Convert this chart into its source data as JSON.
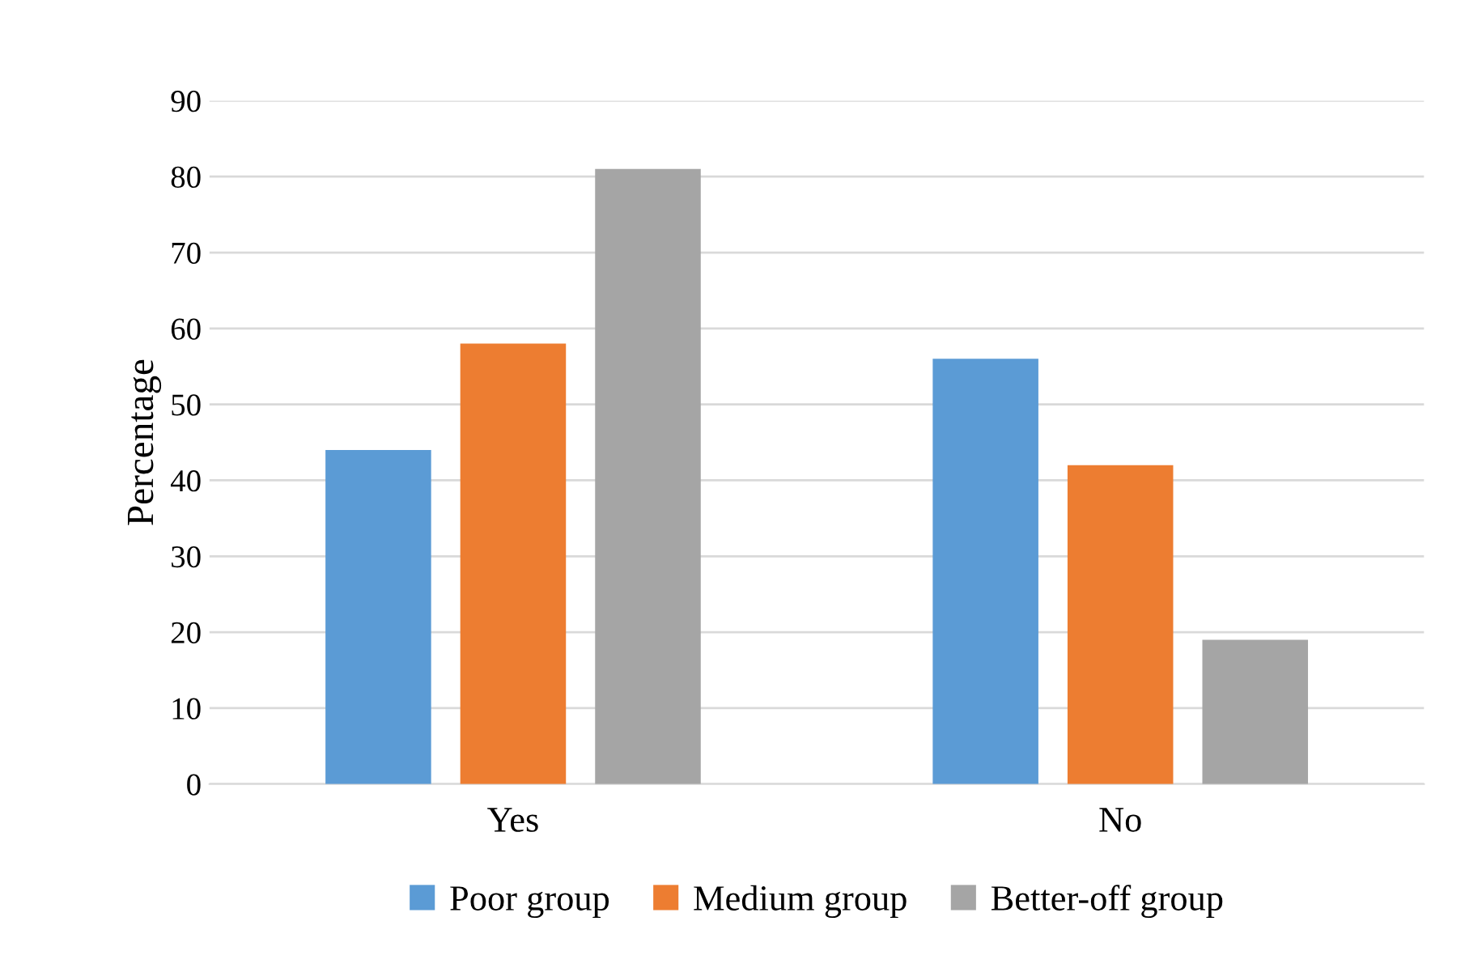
{
  "chart_data": {
    "type": "bar",
    "ylabel": "Percentage",
    "categories": [
      "Yes",
      "No"
    ],
    "series": [
      {
        "name": "Poor group",
        "color": "#5b9bd5",
        "values": [
          44,
          56
        ]
      },
      {
        "name": "Medium group",
        "color": "#ed7d31",
        "values": [
          58,
          42
        ]
      },
      {
        "name": "Better-off group",
        "color": "#a5a5a5",
        "values": [
          81,
          19
        ]
      }
    ],
    "ylim": [
      0,
      90
    ],
    "yticks": [
      0,
      10,
      20,
      30,
      40,
      50,
      60,
      70,
      80,
      90
    ],
    "grid": "y",
    "legend": "bottom"
  }
}
